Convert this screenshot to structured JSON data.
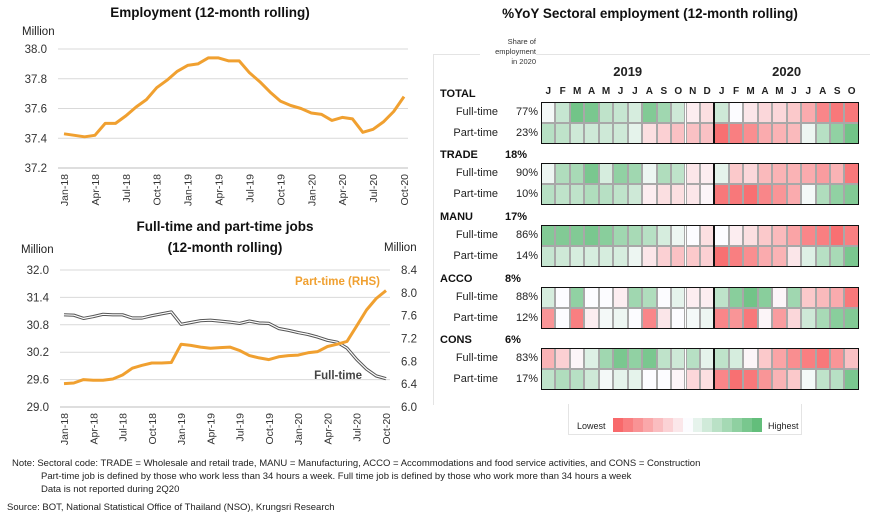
{
  "chart_data": [
    {
      "type": "line",
      "title": "Employment (12-month rolling)",
      "ylabel": "Million",
      "xlabel": "",
      "ylim": [
        37.2,
        38.0
      ],
      "yticks": [
        "37.2",
        "37.4",
        "37.6",
        "37.8",
        "38.0"
      ],
      "xtick_labels": [
        "Jan-18",
        "Apr-18",
        "Jul-18",
        "Oct-18",
        "Jan-19",
        "Apr-19",
        "Jul-19",
        "Oct-19",
        "Jan-20",
        "Apr-20",
        "Jul-20",
        "Oct-20"
      ],
      "grid": true,
      "x": [
        "Jan-18",
        "Feb-18",
        "Mar-18",
        "Apr-18",
        "May-18",
        "Jun-18",
        "Jul-18",
        "Aug-18",
        "Sep-18",
        "Oct-18",
        "Nov-18",
        "Dec-18",
        "Jan-19",
        "Feb-19",
        "Mar-19",
        "Apr-19",
        "May-19",
        "Jun-19",
        "Jul-19",
        "Aug-19",
        "Sep-19",
        "Oct-19",
        "Nov-19",
        "Dec-19",
        "Jan-20",
        "Feb-20",
        "Mar-20",
        "Apr-20",
        "May-20",
        "Jun-20",
        "Jul-20",
        "Aug-20",
        "Sep-20",
        "Oct-20"
      ],
      "series": [
        {
          "name": "Employment",
          "color": "#F0A030",
          "values": [
            37.43,
            37.42,
            37.41,
            37.42,
            37.5,
            37.5,
            37.55,
            37.61,
            37.66,
            37.74,
            37.79,
            37.85,
            37.89,
            37.9,
            37.94,
            37.94,
            37.92,
            37.92,
            37.84,
            37.78,
            37.71,
            37.65,
            37.62,
            37.6,
            37.57,
            37.56,
            37.52,
            37.54,
            37.53,
            37.44,
            37.46,
            37.51,
            37.58,
            37.68
          ]
        }
      ]
    },
    {
      "type": "line",
      "title": "Full-time and part-time jobs",
      "subtitle": "(12-month rolling)",
      "ylabel": "Million",
      "ylabel_right": "Million",
      "ylim": [
        29.0,
        32.0
      ],
      "ylim_right": [
        6.0,
        8.4
      ],
      "yticks": [
        "29.0",
        "29.6",
        "30.2",
        "30.8",
        "31.4",
        "32.0"
      ],
      "yticks_right": [
        "6.0",
        "6.4",
        "6.8",
        "7.2",
        "7.6",
        "8.0",
        "8.4"
      ],
      "xtick_labels": [
        "Jan-18",
        "Apr-18",
        "Jul-18",
        "Oct-18",
        "Jan-19",
        "Apr-19",
        "Jul-19",
        "Oct-19",
        "Jan-20",
        "Apr-20",
        "Jul-20",
        "Oct-20"
      ],
      "grid": true,
      "x": [
        "Jan-18",
        "Feb-18",
        "Mar-18",
        "Apr-18",
        "May-18",
        "Jun-18",
        "Jul-18",
        "Aug-18",
        "Sep-18",
        "Oct-18",
        "Nov-18",
        "Dec-18",
        "Jan-19",
        "Feb-19",
        "Mar-19",
        "Apr-19",
        "May-19",
        "Jun-19",
        "Jul-19",
        "Aug-19",
        "Sep-19",
        "Oct-19",
        "Nov-19",
        "Dec-19",
        "Jan-20",
        "Feb-20",
        "Mar-20",
        "Apr-20",
        "May-20",
        "Jun-20",
        "Jul-20",
        "Aug-20",
        "Sep-20",
        "Oct-20"
      ],
      "series": [
        {
          "name": "Full-time",
          "axis": "left",
          "color": "#555555",
          "label": "Full-time",
          "values": [
            31.02,
            31.01,
            30.94,
            30.98,
            31.03,
            31.02,
            31.02,
            30.95,
            30.95,
            31.0,
            31.04,
            31.08,
            30.81,
            30.85,
            30.89,
            30.9,
            30.88,
            30.86,
            30.83,
            30.88,
            30.84,
            30.83,
            30.72,
            30.68,
            30.63,
            30.59,
            30.53,
            30.46,
            30.42,
            30.29,
            30.04,
            29.83,
            29.68,
            29.62
          ]
        },
        {
          "name": "Part-time (RHS)",
          "axis": "right",
          "color": "#F0A030",
          "label": "Part-time (RHS)",
          "values": [
            6.41,
            6.42,
            6.48,
            6.47,
            6.47,
            6.49,
            6.56,
            6.68,
            6.73,
            6.77,
            6.77,
            6.78,
            7.1,
            7.08,
            7.05,
            7.03,
            7.04,
            7.05,
            6.99,
            6.9,
            6.86,
            6.83,
            6.88,
            6.9,
            6.91,
            6.95,
            6.97,
            7.06,
            7.1,
            7.15,
            7.42,
            7.7,
            7.9,
            8.04
          ]
        }
      ]
    },
    {
      "type": "heatmap",
      "title": "%YoY Sectoral employment (12-month rolling)",
      "share_header": [
        "Share of",
        "employment",
        "in 2020"
      ],
      "years": [
        "2019",
        "2020"
      ],
      "months": [
        "J",
        "F",
        "M",
        "A",
        "M",
        "J",
        "J",
        "A",
        "S",
        "O",
        "N",
        "D",
        "J",
        "F",
        "M",
        "A",
        "M",
        "J",
        "J",
        "A",
        "S",
        "O"
      ],
      "scale": "intensity from -1 (lowest, red) to +1 (highest, green)",
      "legend": {
        "low": "Lowest",
        "high": "Highest",
        "low_color": "#F8696B",
        "mid_color": "#FCFCFF",
        "high_color": "#63BE7B"
      },
      "sectors": [
        {
          "code": "TOTAL",
          "share": "",
          "rows": [
            {
              "label": "Full-time",
              "share": "77%",
              "values": [
                0.05,
                0.35,
                0.9,
                0.85,
                0.4,
                0.35,
                0.25,
                0.8,
                0.6,
                0.3,
                -0.1,
                -0.2,
                0.3,
                0.0,
                -0.15,
                -0.25,
                -0.25,
                -0.35,
                -0.55,
                -0.8,
                -0.9,
                -0.9
              ]
            },
            {
              "label": "Part-time",
              "share": "23%",
              "values": [
                0.45,
                0.4,
                0.3,
                0.3,
                0.3,
                0.3,
                0.15,
                -0.2,
                -0.3,
                -0.4,
                -0.4,
                -0.4,
                -0.95,
                -0.85,
                -0.75,
                -0.55,
                -0.5,
                -0.45,
                0.1,
                0.45,
                0.7,
                0.9
              ]
            }
          ]
        },
        {
          "code": "TRADE",
          "share": "18%",
          "rows": [
            {
              "label": "Full-time",
              "share": "90%",
              "values": [
                0.1,
                0.5,
                0.55,
                0.85,
                0.25,
                0.7,
                0.6,
                0.1,
                0.5,
                0.4,
                -0.15,
                -0.1,
                0.15,
                -0.35,
                -0.25,
                -0.45,
                -0.5,
                -0.5,
                -0.55,
                -0.65,
                -0.5,
                -0.9
              ]
            },
            {
              "label": "Part-time",
              "share": "10%",
              "values": [
                0.45,
                0.4,
                0.4,
                0.5,
                0.45,
                0.4,
                0.3,
                -0.1,
                -0.2,
                -0.2,
                -0.15,
                -0.05,
                -0.9,
                -0.9,
                -0.95,
                -0.8,
                -0.7,
                -0.55,
                0.05,
                0.5,
                0.7,
                0.8
              ]
            }
          ]
        },
        {
          "code": "MANU",
          "share": "17%",
          "rows": [
            {
              "label": "Full-time",
              "share": "86%",
              "values": [
                0.8,
                0.8,
                0.8,
                0.85,
                0.75,
                0.6,
                0.55,
                0.45,
                0.25,
                0.1,
                0.0,
                -0.2,
                0.0,
                -0.1,
                -0.2,
                -0.35,
                -0.45,
                -0.6,
                -0.8,
                -0.85,
                -0.95,
                -0.85
              ]
            },
            {
              "label": "Part-time",
              "share": "14%",
              "values": [
                0.35,
                0.3,
                0.25,
                0.25,
                0.25,
                0.25,
                0.1,
                -0.15,
                -0.3,
                -0.4,
                -0.35,
                -0.3,
                -0.95,
                -0.85,
                -0.75,
                -0.55,
                -0.5,
                -0.15,
                0.2,
                0.45,
                0.55,
                0.85
              ]
            }
          ]
        },
        {
          "code": "ACCO",
          "share": "8%",
          "rows": [
            {
              "label": "Full-time",
              "share": "88%",
              "values": [
                0.25,
                0.0,
                0.7,
                0.0,
                0.0,
                -0.1,
                0.6,
                0.5,
                0.0,
                0.15,
                -0.1,
                -0.1,
                0.4,
                0.75,
                0.9,
                0.75,
                -0.05,
                0.6,
                -0.35,
                -0.45,
                -0.55,
                -0.9
              ]
            },
            {
              "label": "Part-time",
              "share": "12%",
              "values": [
                -0.7,
                0.0,
                -0.85,
                -0.1,
                0.05,
                0.1,
                0.0,
                -0.8,
                -0.15,
                0.0,
                0.05,
                0.1,
                -0.8,
                -0.7,
                -0.9,
                -0.05,
                -0.65,
                -0.25,
                0.3,
                0.55,
                0.75,
                0.8
              ]
            }
          ]
        },
        {
          "code": "CONS",
          "share": "6%",
          "rows": [
            {
              "label": "Full-time",
              "share": "83%",
              "values": [
                -0.5,
                -0.3,
                -0.05,
                0.2,
                0.6,
                0.85,
                0.7,
                0.85,
                0.4,
                0.3,
                0.45,
                0.15,
                0.4,
                0.25,
                -0.05,
                -0.35,
                -0.6,
                -0.75,
                -0.85,
                -0.9,
                -0.7,
                -0.4
              ]
            },
            {
              "label": "Part-time",
              "share": "17%",
              "values": [
                0.4,
                0.5,
                0.45,
                0.3,
                0.05,
                0.15,
                0.15,
                0.0,
                0.0,
                -0.05,
                -0.25,
                -0.2,
                -0.8,
                -0.95,
                -0.9,
                -0.7,
                -0.5,
                -0.35,
                0.05,
                0.4,
                0.45,
                0.85
              ]
            }
          ]
        }
      ]
    }
  ],
  "notes": {
    "line1": "Note: Sectoral code: TRADE = Wholesale and retail trade, MANU = Manufacturing, ACCO = Accommodations and food service activities, and CONS = Construction",
    "line2": "Part-time job is defined by those who work less than 34 hours a week. Full time job is defined by those who work  more than 34 hours a week",
    "line3": "Data is not reported during 2Q20",
    "source": "Source: BOT, National Statistical Office of Thailand (NSO), Krungsri Research"
  }
}
